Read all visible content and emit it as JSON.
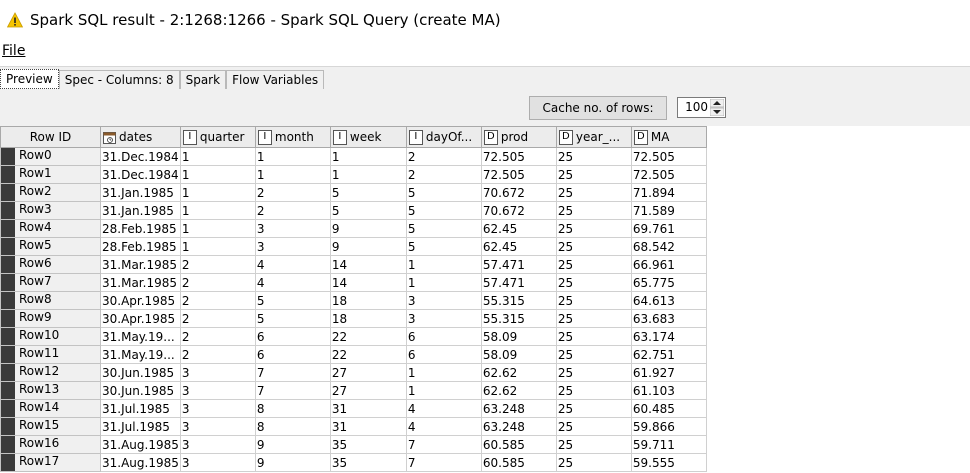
{
  "window": {
    "title": "Spark SQL result - 2:1268:1266 - Spark SQL Query (create MA)",
    "title_icon": "warning-icon"
  },
  "menu": {
    "file_label": "File"
  },
  "tabs": [
    {
      "label": "Preview",
      "active": true
    },
    {
      "label": "Spec - Columns: 8",
      "active": false
    },
    {
      "label": "Spark",
      "active": false
    },
    {
      "label": "Flow Variables",
      "active": false
    }
  ],
  "toolbar": {
    "cache_label": "Cache no. of rows:",
    "cache_value": "100"
  },
  "table": {
    "columns": [
      {
        "label": "Row ID",
        "type": ""
      },
      {
        "label": "dates",
        "type": "calendar"
      },
      {
        "label": "quarter",
        "type": "I"
      },
      {
        "label": "month",
        "type": "I"
      },
      {
        "label": "week",
        "type": "I"
      },
      {
        "label": "dayOf...",
        "type": "I"
      },
      {
        "label": "prod",
        "type": "D"
      },
      {
        "label": "year_...",
        "type": "D"
      },
      {
        "label": "MA",
        "type": "D"
      }
    ],
    "rows": [
      [
        "Row0",
        "31.Dec.1984",
        "1",
        "1",
        "1",
        "2",
        "72.505",
        "25",
        "72.505"
      ],
      [
        "Row1",
        "31.Dec.1984",
        "1",
        "1",
        "1",
        "2",
        "72.505",
        "25",
        "72.505"
      ],
      [
        "Row2",
        "31.Jan.1985",
        "1",
        "2",
        "5",
        "5",
        "70.672",
        "25",
        "71.894"
      ],
      [
        "Row3",
        "31.Jan.1985",
        "1",
        "2",
        "5",
        "5",
        "70.672",
        "25",
        "71.589"
      ],
      [
        "Row4",
        "28.Feb.1985",
        "1",
        "3",
        "9",
        "5",
        "62.45",
        "25",
        "69.761"
      ],
      [
        "Row5",
        "28.Feb.1985",
        "1",
        "3",
        "9",
        "5",
        "62.45",
        "25",
        "68.542"
      ],
      [
        "Row6",
        "31.Mar.1985",
        "2",
        "4",
        "14",
        "1",
        "57.471",
        "25",
        "66.961"
      ],
      [
        "Row7",
        "31.Mar.1985",
        "2",
        "4",
        "14",
        "1",
        "57.471",
        "25",
        "65.775"
      ],
      [
        "Row8",
        "30.Apr.1985",
        "2",
        "5",
        "18",
        "3",
        "55.315",
        "25",
        "64.613"
      ],
      [
        "Row9",
        "30.Apr.1985",
        "2",
        "5",
        "18",
        "3",
        "55.315",
        "25",
        "63.683"
      ],
      [
        "Row10",
        "31.May.19...",
        "2",
        "6",
        "22",
        "6",
        "58.09",
        "25",
        "63.174"
      ],
      [
        "Row11",
        "31.May.19...",
        "2",
        "6",
        "22",
        "6",
        "58.09",
        "25",
        "62.751"
      ],
      [
        "Row12",
        "30.Jun.1985",
        "3",
        "7",
        "27",
        "1",
        "62.62",
        "25",
        "61.927"
      ],
      [
        "Row13",
        "30.Jun.1985",
        "3",
        "7",
        "27",
        "1",
        "62.62",
        "25",
        "61.103"
      ],
      [
        "Row14",
        "31.Jul.1985",
        "3",
        "8",
        "31",
        "4",
        "63.248",
        "25",
        "60.485"
      ],
      [
        "Row15",
        "31.Jul.1985",
        "3",
        "8",
        "31",
        "4",
        "63.248",
        "25",
        "59.866"
      ],
      [
        "Row16",
        "31.Aug.1985",
        "3",
        "9",
        "35",
        "7",
        "60.585",
        "25",
        "59.711"
      ],
      [
        "Row17",
        "31.Aug.1985",
        "3",
        "9",
        "35",
        "7",
        "60.585",
        "25",
        "59.555"
      ]
    ]
  }
}
